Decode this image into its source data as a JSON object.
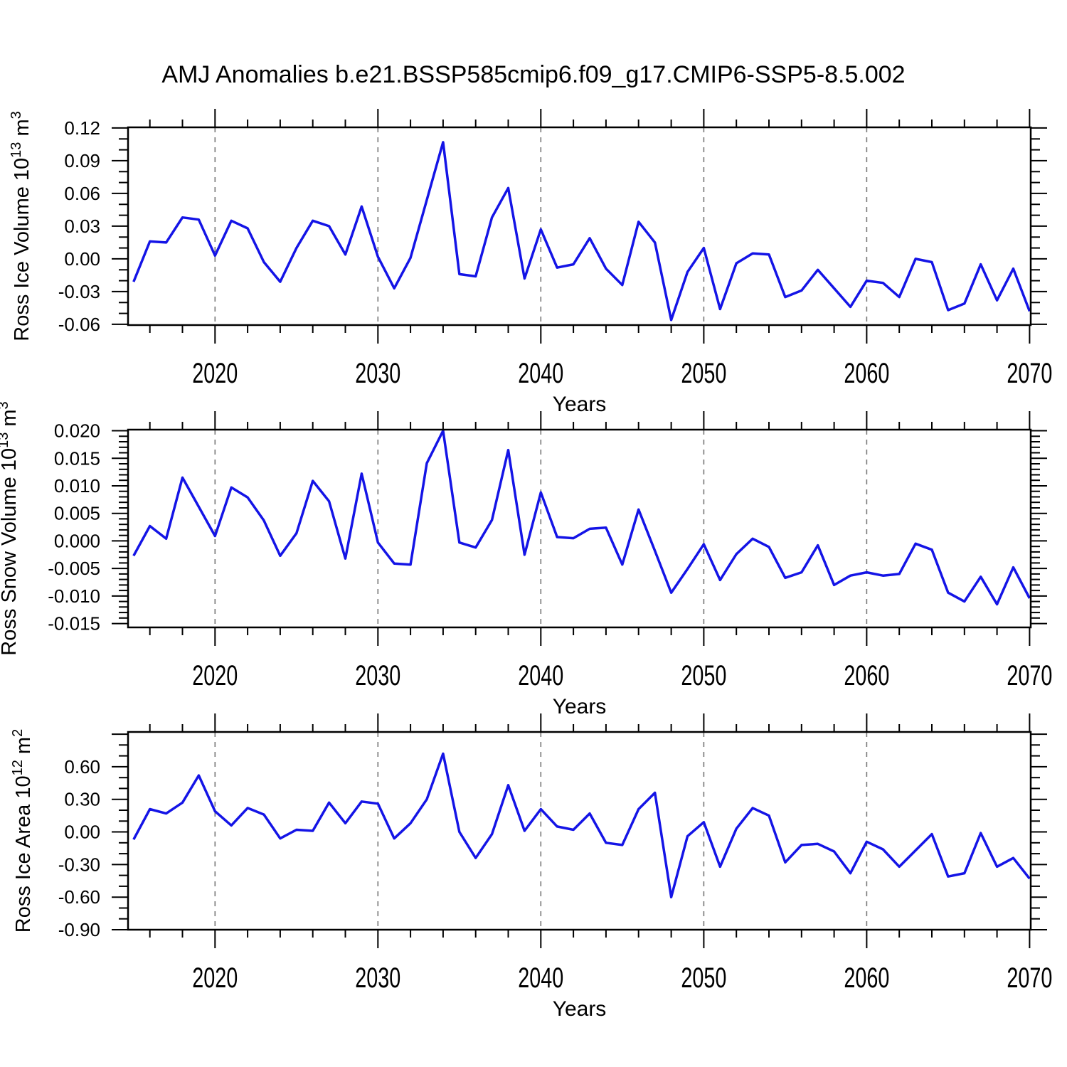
{
  "title": "AMJ Anomalies b.e21.BSSP585cmip6.f09_g17.CMIP6-SSP5-8.5.002",
  "colors": {
    "series": "#1414e6",
    "grid": "#777777",
    "axis": "#000000",
    "background": "#ffffff"
  },
  "x_axis": {
    "label": "Years",
    "start_year": 2015,
    "end_year": 2070,
    "xlim": [
      2014.66,
      2070.07
    ],
    "major_tick_labels": [
      "2020",
      "2030",
      "2040",
      "2050",
      "2060",
      "2070"
    ],
    "major_ticks": [
      2020,
      2030,
      2040,
      2050,
      2060,
      2070
    ],
    "minor_step_years": 2,
    "grid_decades": [
      2020,
      2030,
      2040,
      2050,
      2060
    ]
  },
  "years": [
    2015,
    2016,
    2017,
    2018,
    2019,
    2020,
    2021,
    2022,
    2023,
    2024,
    2025,
    2026,
    2027,
    2028,
    2029,
    2030,
    2031,
    2032,
    2033,
    2034,
    2035,
    2036,
    2037,
    2038,
    2039,
    2040,
    2041,
    2042,
    2043,
    2044,
    2045,
    2046,
    2047,
    2048,
    2049,
    2050,
    2051,
    2052,
    2053,
    2054,
    2055,
    2056,
    2057,
    2058,
    2059,
    2060,
    2061,
    2062,
    2063,
    2064,
    2065,
    2066,
    2067,
    2068,
    2069,
    2070
  ],
  "chart_data": [
    {
      "id": "ice_volume",
      "type": "line",
      "ylabel_text": "Ross Ice Volume 10^13 m^3",
      "ylabel_parts": [
        {
          "t": "Ross Ice Volume 10"
        },
        {
          "t": "13",
          "sup": true
        },
        {
          "t": " m"
        },
        {
          "t": "3",
          "sup": true
        }
      ],
      "xlabel": "Years",
      "ylim": [
        -0.0607,
        0.1206
      ],
      "ymajor_step": 0.03,
      "yminor_step": 0.01,
      "grid": "vertical-dashed-decades",
      "legend": "none",
      "yticks": [
        {
          "v": 0.12,
          "label": "0.12"
        },
        {
          "v": 0.09,
          "label": "0.09"
        },
        {
          "v": 0.06,
          "label": "0.06"
        },
        {
          "v": 0.03,
          "label": "0.03"
        },
        {
          "v": 0.0,
          "label": "0.00"
        },
        {
          "v": -0.03,
          "label": "-0.03"
        },
        {
          "v": -0.06,
          "label": "-0.06"
        }
      ],
      "values": [
        -0.021,
        0.016,
        0.015,
        0.038,
        0.036,
        0.003,
        0.035,
        0.028,
        -0.003,
        -0.021,
        0.01,
        0.035,
        0.03,
        0.004,
        0.048,
        0.002,
        -0.027,
        0.001,
        0.054,
        0.107,
        -0.014,
        -0.016,
        0.038,
        0.065,
        -0.018,
        0.027,
        -0.008,
        -0.005,
        0.019,
        -0.009,
        -0.024,
        0.034,
        0.015,
        -0.056,
        -0.012,
        0.01,
        -0.046,
        -0.004,
        0.005,
        0.004,
        -0.035,
        -0.029,
        -0.01,
        -0.027,
        -0.044,
        -0.02,
        -0.022,
        -0.035,
        0.0,
        -0.003,
        -0.047,
        -0.041,
        -0.005,
        -0.038,
        -0.009,
        -0.048
      ]
    },
    {
      "id": "snow_volume",
      "type": "line",
      "ylabel_text": "Ross Snow Volume 10^13 m^3",
      "ylabel_parts": [
        {
          "t": "Ross Snow Volume 10"
        },
        {
          "t": "13",
          "sup": true
        },
        {
          "t": " m"
        },
        {
          "t": "3",
          "sup": true
        }
      ],
      "xlabel": "Years",
      "ylim": [
        -0.0157,
        0.0202
      ],
      "ymajor_step": 0.005,
      "yminor_step": 0.001,
      "grid": "vertical-dashed-decades",
      "legend": "none",
      "yticks": [
        {
          "v": 0.02,
          "label": "0.020"
        },
        {
          "v": 0.015,
          "label": "0.015"
        },
        {
          "v": 0.01,
          "label": "0.010"
        },
        {
          "v": 0.005,
          "label": "0.005"
        },
        {
          "v": 0.0,
          "label": "0.000"
        },
        {
          "v": -0.005,
          "label": "-0.005"
        },
        {
          "v": -0.01,
          "label": "-0.010"
        },
        {
          "v": -0.015,
          "label": "-0.015"
        }
      ],
      "values": [
        -0.0027,
        0.0027,
        0.0004,
        0.0115,
        0.0062,
        0.0009,
        0.0097,
        0.0079,
        0.0037,
        -0.0027,
        0.0014,
        0.0109,
        0.0072,
        -0.0032,
        0.0122,
        -0.0003,
        -0.0041,
        -0.0043,
        0.0141,
        0.02,
        -0.0003,
        -0.0012,
        0.0038,
        0.0165,
        -0.0025,
        0.0088,
        0.0007,
        0.0005,
        0.0022,
        0.0024,
        -0.0043,
        0.0057,
        -0.0018,
        -0.0094,
        -0.0051,
        -0.0006,
        -0.0071,
        -0.0024,
        0.0004,
        -0.0011,
        -0.0067,
        -0.0057,
        -0.0008,
        -0.008,
        -0.0063,
        -0.0057,
        -0.0063,
        -0.006,
        -0.0005,
        -0.0016,
        -0.0094,
        -0.011,
        -0.0065,
        -0.0115,
        -0.0048,
        -0.0104
      ]
    },
    {
      "id": "ice_area",
      "type": "line",
      "ylabel_text": "Ross Ice Area 10^12 m^2",
      "ylabel_parts": [
        {
          "t": "Ross Ice Area 10"
        },
        {
          "t": "12",
          "sup": true
        },
        {
          "t": " m"
        },
        {
          "t": "2",
          "sup": true
        }
      ],
      "xlabel": "Years",
      "ylim": [
        -0.9,
        0.92
      ],
      "ymajor_step": 0.3,
      "yminor_step": 0.1,
      "grid": "vertical-dashed-decades",
      "legend": "none",
      "yticks": [
        {
          "v": 0.9,
          "label": ""
        },
        {
          "v": 0.6,
          "label": "0.60"
        },
        {
          "v": 0.3,
          "label": "0.30"
        },
        {
          "v": 0.0,
          "label": "0.00"
        },
        {
          "v": -0.3,
          "label": "-0.30"
        },
        {
          "v": -0.6,
          "label": "-0.60"
        },
        {
          "v": -0.9,
          "label": "-0.90"
        }
      ],
      "values": [
        -0.07,
        0.21,
        0.17,
        0.27,
        0.52,
        0.19,
        0.06,
        0.22,
        0.16,
        -0.06,
        0.02,
        0.01,
        0.27,
        0.08,
        0.28,
        0.26,
        -0.06,
        0.08,
        0.3,
        0.72,
        0.0,
        -0.24,
        -0.02,
        0.43,
        0.01,
        0.21,
        0.05,
        0.02,
        0.17,
        -0.1,
        -0.12,
        0.21,
        0.36,
        -0.6,
        -0.04,
        0.09,
        -0.32,
        0.03,
        0.22,
        0.15,
        -0.28,
        -0.12,
        -0.11,
        -0.18,
        -0.38,
        -0.09,
        -0.16,
        -0.32,
        -0.17,
        -0.02,
        -0.41,
        -0.38,
        -0.01,
        -0.32,
        -0.24,
        -0.43
      ]
    }
  ]
}
